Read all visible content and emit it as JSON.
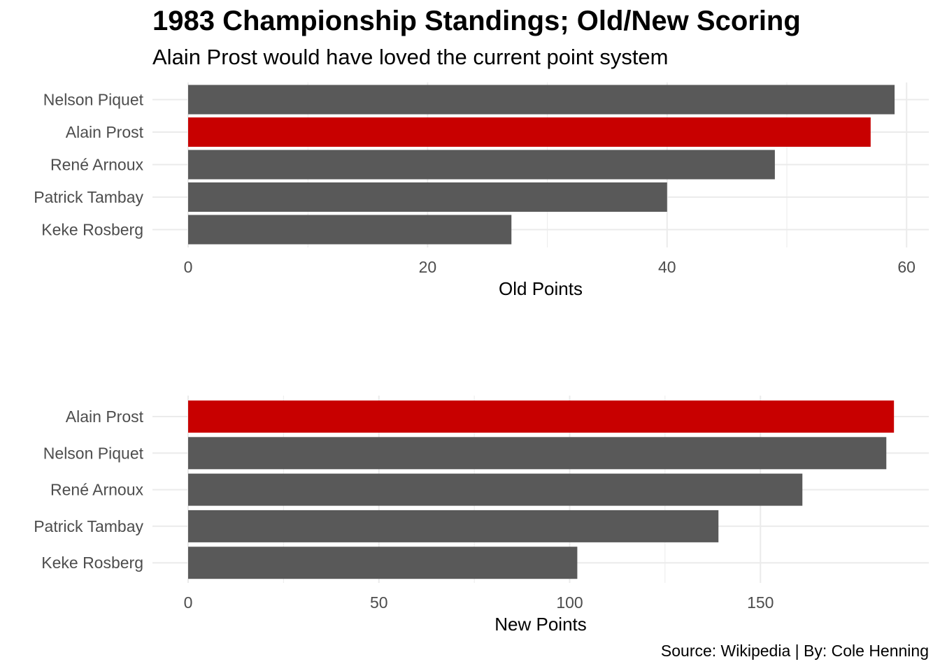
{
  "title": "1983 Championship Standings; Old/New Scoring",
  "subtitle": "Alain Prost would have loved the current point system",
  "caption": "Source: Wikipedia | By: Cole Henning",
  "colors": {
    "highlight": "#c80000",
    "default_bar": "#595959",
    "grid": "#ebebeb",
    "tick_text": "#4d4d4d"
  },
  "highlight_driver": "Alain Prost",
  "chart_data": [
    {
      "type": "bar",
      "orientation": "horizontal",
      "categories": [
        "Nelson Piquet",
        "Alain Prost",
        "René Arnoux",
        "Patrick Tambay",
        "Keke Rosberg"
      ],
      "values": [
        59,
        57,
        49,
        40,
        27
      ],
      "xlabel": "Old Points",
      "ylabel": "",
      "xlim": [
        0,
        60
      ],
      "xticks": [
        0,
        20,
        40,
        60
      ],
      "grid": true
    },
    {
      "type": "bar",
      "orientation": "horizontal",
      "categories": [
        "Alain Prost",
        "Nelson Piquet",
        "René Arnoux",
        "Patrick Tambay",
        "Keke Rosberg"
      ],
      "values": [
        185,
        183,
        161,
        139,
        102
      ],
      "xlabel": "New Points",
      "ylabel": "",
      "xlim": [
        0,
        185
      ],
      "xticks": [
        0,
        50,
        100,
        150
      ],
      "grid": true
    }
  ]
}
